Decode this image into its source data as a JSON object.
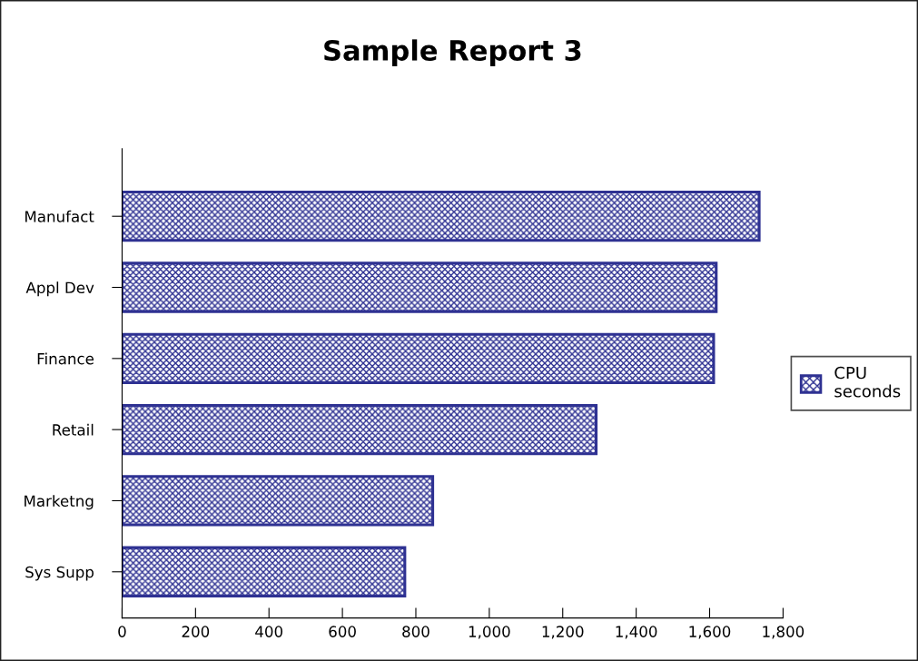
{
  "chart_data": {
    "type": "bar",
    "orientation": "horizontal",
    "title": "Sample Report 3",
    "categories": [
      "Manufact",
      "Appl Dev",
      "Finance",
      "Retail",
      "Marketng",
      "Sys Supp"
    ],
    "series": [
      {
        "name": "CPU seconds",
        "color": "#2e3192",
        "values": [
          1735,
          1618,
          1611,
          1291,
          846,
          770
        ]
      }
    ],
    "xlim": [
      0,
      1800
    ],
    "xticks": [
      0,
      {
        "value": 200,
        "label": "200"
      },
      {
        "value": 400,
        "label": "400"
      },
      {
        "value": 600,
        "label": "600"
      },
      {
        "value": 800,
        "label": "800"
      },
      {
        "value": 1000,
        "label": "1,000"
      },
      {
        "value": 1200,
        "label": "1,200"
      },
      {
        "value": 1400,
        "label": "1,400"
      },
      {
        "value": 1600,
        "label": "1,600"
      },
      {
        "value": 1800,
        "label": "1,800"
      }
    ],
    "grid": false,
    "legend": "right"
  }
}
